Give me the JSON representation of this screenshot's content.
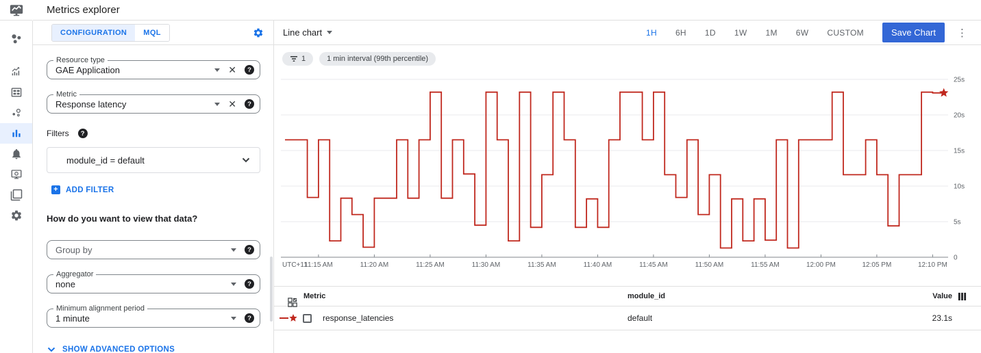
{
  "app": {
    "title": "Metrics explorer"
  },
  "sidebar": {
    "items": [
      {
        "icon": "monitoring-overview-icon",
        "active": false
      },
      {
        "icon": "metrics-icon",
        "active": false
      },
      {
        "icon": "dashboards-icon",
        "active": false
      },
      {
        "icon": "services-icon",
        "active": false
      },
      {
        "icon": "metrics-explorer-icon",
        "active": true
      },
      {
        "icon": "alerting-bell-icon",
        "active": false
      },
      {
        "icon": "uptime-checks-icon",
        "active": false
      },
      {
        "icon": "groups-icon",
        "active": false
      },
      {
        "icon": "settings-gear-icon",
        "active": false
      }
    ]
  },
  "config_panel": {
    "tabs": [
      {
        "label": "CONFIGURATION",
        "active": true
      },
      {
        "label": "MQL",
        "active": false
      }
    ],
    "resource_type": {
      "label": "Resource type",
      "value": "GAE Application"
    },
    "metric": {
      "label": "Metric",
      "value": "Response latency"
    },
    "filters_label": "Filters",
    "filter_value": "module_id = default",
    "add_filter_label": "ADD FILTER",
    "view_question": "How do you want to view that data?",
    "group_by": {
      "placeholder": "Group by"
    },
    "aggregator": {
      "label": "Aggregator",
      "value": "none"
    },
    "min_alignment": {
      "label": "Minimum alignment period",
      "value": "1 minute"
    },
    "show_advanced_label": "SHOW ADVANCED OPTIONS"
  },
  "chart_panel": {
    "chart_type_label": "Line chart",
    "time_ranges": [
      "1H",
      "6H",
      "1D",
      "1W",
      "1M",
      "6W",
      "CUSTOM"
    ],
    "active_range": "1H",
    "save_button": "Save Chart",
    "chips": [
      {
        "icon": "filter-list-icon",
        "label": "1"
      },
      {
        "label": "1 min interval (99th percentile)"
      }
    ]
  },
  "chart_data": {
    "type": "line",
    "line_style": "stepped",
    "title": "",
    "grid": "horizontal",
    "ylim": [
      0,
      25
    ],
    "y_tick_values": [
      25,
      20,
      15,
      10,
      5,
      0
    ],
    "y_tick_labels": [
      "25s",
      "20s",
      "15s",
      "10s",
      "5s",
      "0"
    ],
    "x_axis_prefix": "UTC+11",
    "x_tick_labels": [
      "11:15 AM",
      "11:20 AM",
      "11:25 AM",
      "11:30 AM",
      "11:35 AM",
      "11:40 AM",
      "11:45 AM",
      "11:50 AM",
      "11:55 AM",
      "12:00 PM",
      "12:05 PM",
      "12:10 PM"
    ],
    "x_tick_minutes": [
      3,
      8,
      13,
      18,
      23,
      28,
      33,
      38,
      43,
      48,
      53,
      58
    ],
    "series": [
      {
        "name": "response_latencies",
        "color": "#c0281e",
        "unit": "s",
        "start_time": "11:12 AM",
        "interval_minutes": 1,
        "end_marker": "star",
        "last_value": 23.1,
        "values": [
          16.5,
          16.5,
          8.4,
          16.5,
          2.3,
          8.3,
          6.0,
          1.4,
          8.3,
          8.3,
          16.5,
          8.3,
          16.5,
          23.2,
          8.3,
          16.5,
          11.7,
          4.5,
          23.2,
          16.5,
          2.3,
          23.2,
          4.2,
          11.6,
          23.2,
          16.5,
          4.2,
          8.2,
          4.2,
          16.5,
          23.2,
          23.2,
          16.5,
          23.2,
          11.6,
          8.4,
          16.5,
          6.0,
          11.6,
          1.3,
          8.2,
          2.3,
          8.2,
          2.4,
          16.5,
          1.3,
          16.5,
          16.5,
          16.5,
          23.2,
          11.6,
          11.6,
          16.5,
          11.6,
          4.4,
          11.6,
          11.6,
          23.2,
          23.1
        ]
      }
    ]
  },
  "table": {
    "columns": {
      "metric": "Metric",
      "module_id": "module_id",
      "value": "Value"
    },
    "rows": [
      {
        "legend": "red-line-star",
        "metric": "response_latencies",
        "module_id": "default",
        "value": "23.1s"
      }
    ]
  },
  "colors": {
    "accent": "#1a73e8",
    "save_button": "#3367d6",
    "line": "#c0281e",
    "tab_active_bg": "#e8f0fe",
    "chip_bg": "#e8eaed"
  }
}
